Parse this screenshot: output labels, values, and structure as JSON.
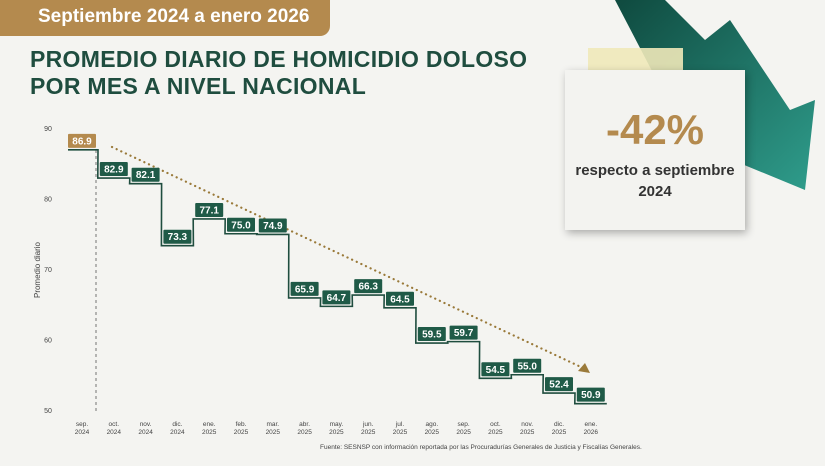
{
  "banner": "Septiembre 2024 a enero 2026",
  "title_line1": "PROMEDIO DIARIO DE HOMICIDIO DOLOSO",
  "title_line2": "POR MES A NIVEL NACIONAL",
  "note": {
    "value": "-42%",
    "line1": "respecto a septiembre",
    "line2": "2024"
  },
  "source": "Fuente: SESNSP con información reportada por las Procuradurías Generales de Justicia y Fiscalías Generales.",
  "colors": {
    "green": "#1f5a47",
    "gold": "#b48a4e"
  },
  "chart_data": {
    "type": "line",
    "title": "PROMEDIO DIARIO DE HOMICIDIO DOLOSO POR MES A NIVEL NACIONAL",
    "ylabel": "Promedio diario",
    "xlabel": "",
    "ylim": [
      50,
      90
    ],
    "yticks": [
      50,
      60,
      70,
      80,
      90
    ],
    "categories": [
      [
        "sep.",
        "2024"
      ],
      [
        "oct.",
        "2024"
      ],
      [
        "nov.",
        "2024"
      ],
      [
        "dic.",
        "2024"
      ],
      [
        "ene.",
        "2025"
      ],
      [
        "feb.",
        "2025"
      ],
      [
        "mar.",
        "2025"
      ],
      [
        "abr.",
        "2025"
      ],
      [
        "may.",
        "2025"
      ],
      [
        "jun.",
        "2025"
      ],
      [
        "jul.",
        "2025"
      ],
      [
        "ago.",
        "2025"
      ],
      [
        "sep.",
        "2025"
      ],
      [
        "oct.",
        "2025"
      ],
      [
        "nov.",
        "2025"
      ],
      [
        "dic.",
        "2025"
      ],
      [
        "ene.",
        "2026"
      ]
    ],
    "values": [
      86.9,
      82.9,
      82.1,
      73.3,
      77.1,
      75.0,
      74.9,
      65.9,
      64.7,
      66.3,
      64.5,
      59.5,
      59.7,
      54.5,
      55.0,
      52.4,
      50.9
    ],
    "labels": [
      "86.9",
      "82.9",
      "82.1",
      "73.3",
      "77.1",
      "75.0",
      "74.9",
      "65.9",
      "64.7",
      "66.3",
      "64.5",
      "59.5",
      "59.7",
      "54.5",
      "55.0",
      "52.4",
      "50.9"
    ],
    "trend": "dotted arrow from oct. 2024 to ene. 2026"
  }
}
